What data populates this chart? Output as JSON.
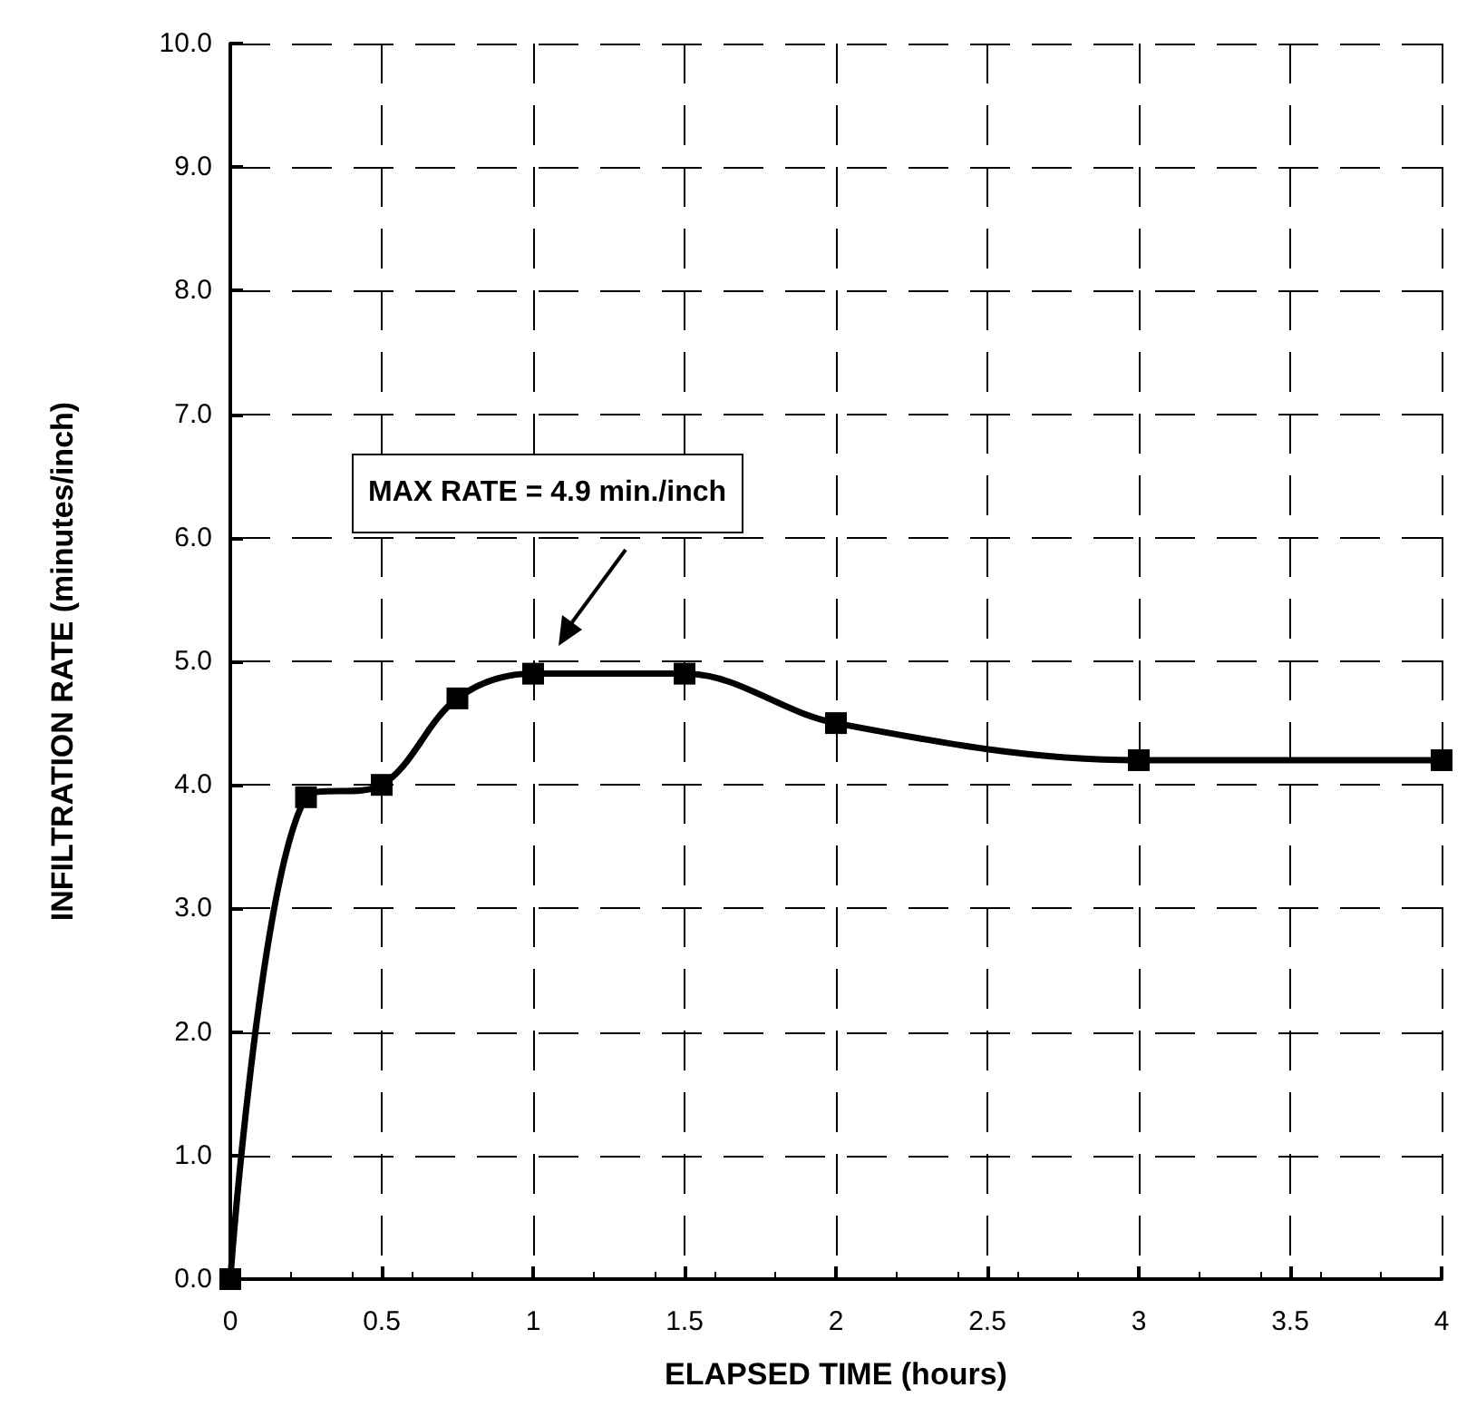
{
  "chart_data": {
    "type": "line",
    "xlabel": "ELAPSED TIME (hours)",
    "ylabel": "INFILTRATION RATE (minutes/inch)",
    "x": [
      0,
      0.25,
      0.5,
      0.75,
      1,
      1.5,
      2,
      3,
      4
    ],
    "series": [
      {
        "color": "#000000",
        "values": [
          0,
          3.9,
          4.0,
          4.7,
          4.9,
          4.9,
          4.5,
          4.2,
          4.2
        ]
      }
    ],
    "xlim": [
      0,
      4
    ],
    "xticks": [
      0,
      0.5,
      1,
      1.5,
      2,
      2.5,
      3,
      3.5,
      4
    ],
    "ylim": [
      0,
      10
    ],
    "yticks": [
      {
        "value": 0,
        "label": "0.0"
      },
      {
        "value": 1,
        "label": "1.0"
      },
      {
        "value": 2,
        "label": "2.0"
      },
      {
        "value": 3,
        "label": "3.0"
      },
      {
        "value": 4,
        "label": "4.0"
      },
      {
        "value": 5,
        "label": "5.0"
      },
      {
        "value": 6,
        "label": "6.0"
      },
      {
        "value": 7,
        "label": "7.0"
      },
      {
        "value": 8,
        "label": "8.0"
      },
      {
        "value": 9,
        "label": "9.0"
      },
      {
        "value": 10,
        "label": "10.0"
      }
    ],
    "grid": true,
    "marker": "square",
    "line_style": "solid",
    "annotations": [
      "MAX RATE = 4.9 min./inch"
    ]
  }
}
